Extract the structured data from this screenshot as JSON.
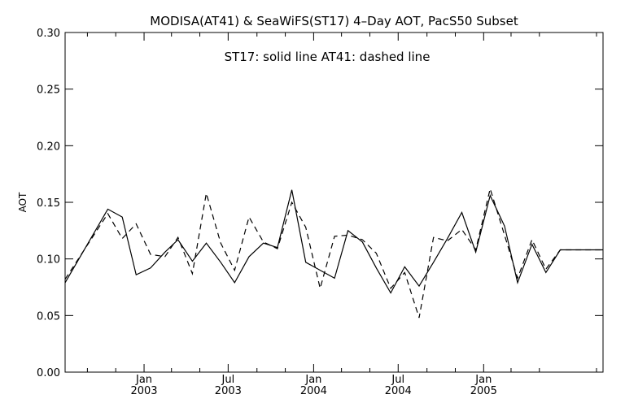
{
  "chart_data": {
    "type": "line",
    "title": "MODISA(AT41) & SeaWiFS(ST17) 4–Day AOT, PacS50 Subset",
    "annotation": "ST17: solid line   AT41: dashed line",
    "ylabel": "AOT",
    "xlabel": "",
    "ylim": [
      0.0,
      0.3
    ],
    "y_ticks": [
      "0.00",
      "0.05",
      "0.10",
      "0.15",
      "0.20",
      "0.25",
      "0.30"
    ],
    "x_range": [
      "2002-07-15",
      "2005-09-15"
    ],
    "x_ticks": [
      {
        "date": "2003-01-01",
        "month": "Jan",
        "year": "2003"
      },
      {
        "date": "2003-07-01",
        "month": "Jul",
        "year": "2003"
      },
      {
        "date": "2004-01-01",
        "month": "Jan",
        "year": "2004"
      },
      {
        "date": "2004-07-01",
        "month": "Jul",
        "year": "2004"
      },
      {
        "date": "2005-01-01",
        "month": "Jan",
        "year": "2005"
      }
    ],
    "series": [
      {
        "name": "ST17",
        "style": "solid",
        "x": [
          "2002-07-15",
          "2002-10-15",
          "2002-11-15",
          "2002-12-15",
          "2003-01-15",
          "2003-02-15",
          "2003-03-15",
          "2003-04-15",
          "2003-05-15",
          "2003-06-15",
          "2003-07-15",
          "2003-08-15",
          "2003-09-15",
          "2003-10-15",
          "2003-11-15",
          "2003-12-15",
          "2004-01-15",
          "2004-02-15",
          "2004-03-15",
          "2004-04-15",
          "2004-05-15",
          "2004-06-15",
          "2004-07-15",
          "2004-08-15",
          "2004-09-15",
          "2004-10-15",
          "2004-11-15",
          "2004-12-15",
          "2005-01-15",
          "2005-02-15",
          "2005-03-15",
          "2005-04-15",
          "2005-05-15",
          "2005-06-15",
          "2005-07-15",
          "2005-08-15",
          "2005-09-15"
        ],
        "y": [
          0.079,
          0.144,
          0.137,
          0.086,
          0.092,
          0.106,
          0.117,
          0.098,
          0.114,
          0.097,
          0.079,
          0.102,
          0.114,
          0.11,
          0.161,
          0.097,
          0.09,
          0.083,
          0.125,
          0.115,
          0.092,
          0.07,
          0.093,
          0.076,
          0.097,
          0.118,
          0.141,
          0.106,
          0.156,
          0.129,
          0.079,
          0.113,
          0.088,
          0.108,
          0.108,
          0.108,
          0.108
        ]
      },
      {
        "name": "AT41",
        "style": "dashed",
        "x": [
          "2002-07-15",
          "2002-10-15",
          "2002-11-15",
          "2002-12-15",
          "2003-01-15",
          "2003-02-15",
          "2003-03-15",
          "2003-04-15",
          "2003-05-15",
          "2003-06-15",
          "2003-07-15",
          "2003-08-15",
          "2003-09-15",
          "2003-10-15",
          "2003-11-15",
          "2003-12-15",
          "2004-01-15",
          "2004-02-15",
          "2004-03-15",
          "2004-04-15",
          "2004-05-15",
          "2004-06-15",
          "2004-07-15",
          "2004-08-15",
          "2004-09-15",
          "2004-10-15",
          "2004-11-15",
          "2004-12-15",
          "2005-01-15",
          "2005-02-15",
          "2005-03-15",
          "2005-04-15",
          "2005-05-15",
          "2005-06-15",
          "2005-07-15",
          "2005-08-15",
          "2005-09-15"
        ],
        "y": [
          0.082,
          0.14,
          0.118,
          0.131,
          0.104,
          0.102,
          0.119,
          0.087,
          0.158,
          0.114,
          0.09,
          0.137,
          0.115,
          0.109,
          0.15,
          0.128,
          0.074,
          0.12,
          0.121,
          0.117,
          0.105,
          0.074,
          0.088,
          0.048,
          0.119,
          0.116,
          0.126,
          0.108,
          0.162,
          0.121,
          0.083,
          0.117,
          0.091,
          0.108,
          0.108,
          0.108,
          0.108
        ]
      }
    ],
    "grid": false,
    "legend": "none"
  }
}
